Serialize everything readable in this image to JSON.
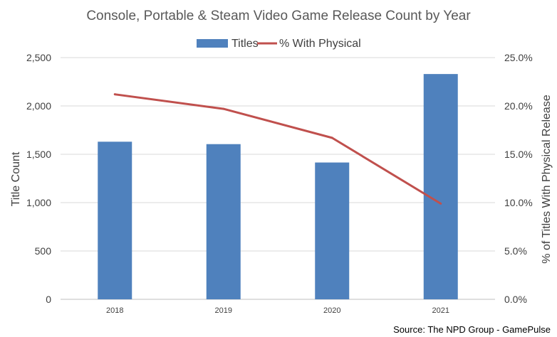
{
  "chart_data": {
    "type": "bar+line",
    "title": "Console, Portable & Steam Video Game Release Count by Year",
    "categories": [
      "2018",
      "2019",
      "2020",
      "2021"
    ],
    "series": [
      {
        "name": "Titles",
        "type": "bar",
        "axis": "left",
        "color": "#4F81BD",
        "values": [
          1630,
          1605,
          1415,
          2330
        ]
      },
      {
        "name": "% With Physical",
        "type": "line",
        "axis": "right",
        "color": "#C0504D",
        "values": [
          21.2,
          19.7,
          16.7,
          9.9
        ]
      }
    ],
    "ylabel": "Title Count",
    "y2label": "% of Titles With Physical Release",
    "ylim": [
      0,
      2500
    ],
    "y2lim": [
      0,
      25
    ],
    "yticks": [
      "0",
      "500",
      "1,000",
      "1,500",
      "2,000",
      "2,500"
    ],
    "y2ticks": [
      "0.0%",
      "5.0%",
      "10.0%",
      "15.0%",
      "20.0%",
      "25.0%"
    ],
    "grid": true,
    "legend": "top",
    "source": "Source: The NPD Group - GamePulse"
  }
}
